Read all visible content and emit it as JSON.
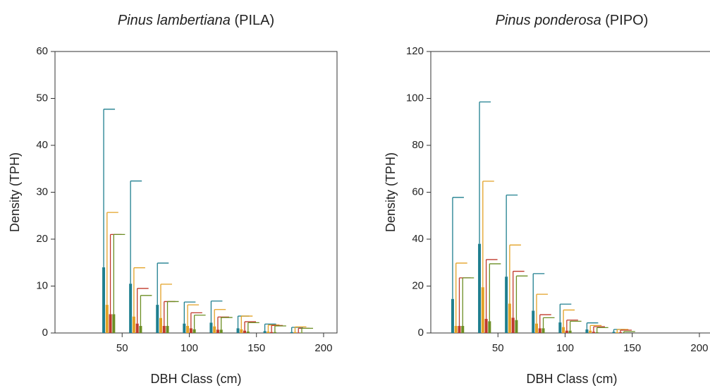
{
  "chart_data": [
    {
      "type": "bar",
      "title": {
        "species": "Pinus lambertiana",
        "code": "(PILA)"
      },
      "x_label": "DBH Class (cm)",
      "y_label": "Density (TPH)",
      "x": [
        40,
        60,
        80,
        100,
        120,
        140,
        160,
        180
      ],
      "xlim": [
        0,
        210
      ],
      "xticks": [
        50,
        100,
        150,
        200
      ],
      "ylim": [
        0,
        60
      ],
      "yticks": [
        0,
        10,
        20,
        30,
        40,
        50,
        60
      ],
      "series": [
        {
          "color": "#1f7f8f",
          "values": [
            14,
            10.5,
            6,
            2,
            2.2,
            1,
            0.4,
            0.2
          ],
          "errors": [
            33.7,
            21.9,
            8.9,
            4.6,
            4.6,
            2.6,
            1.5,
            1.0
          ]
        },
        {
          "color": "#e3a226",
          "values": [
            6,
            3.5,
            3.2,
            1.5,
            1.4,
            0.8,
            0.3,
            0.2
          ],
          "errors": [
            19.7,
            10.4,
            7.2,
            4.5,
            3.6,
            2.8,
            1.4,
            1.1
          ]
        },
        {
          "color": "#c0392b",
          "values": [
            4,
            2,
            1.5,
            1,
            0.7,
            0.5,
            0.2,
            0.1
          ],
          "errors": [
            17,
            7.5,
            5.2,
            3.3,
            2.7,
            1.9,
            1.4,
            0.9
          ]
        },
        {
          "color": "#6b8e23",
          "values": [
            4,
            1.5,
            1.5,
            0.8,
            0.7,
            0.3,
            0.2,
            0.1
          ],
          "errors": [
            17,
            6.5,
            5.2,
            3.0,
            2.6,
            1.9,
            1.3,
            0.9
          ]
        }
      ]
    },
    {
      "type": "bar",
      "title": {
        "species": "Pinus ponderosa",
        "code": "(PIPO)"
      },
      "x_label": "DBH Class (cm)",
      "y_label": "Density (TPH)",
      "x": [
        20,
        40,
        60,
        80,
        100,
        120,
        140
      ],
      "xlim": [
        0,
        210
      ],
      "xticks": [
        50,
        100,
        150,
        200
      ],
      "ylim": [
        0,
        120
      ],
      "yticks": [
        0,
        20,
        40,
        60,
        80,
        100,
        120
      ],
      "series": [
        {
          "color": "#1f7f8f",
          "values": [
            14.5,
            38,
            24,
            9.5,
            4.5,
            1.5,
            0.5
          ],
          "errors": [
            43.3,
            60.5,
            34.8,
            15.8,
            7.8,
            2.8,
            1.0
          ]
        },
        {
          "color": "#e3a226",
          "values": [
            3,
            19.5,
            12.5,
            4,
            2.5,
            1,
            0.3
          ],
          "errors": [
            26.8,
            45.2,
            25,
            12.5,
            7.3,
            2.2,
            1.2
          ]
        },
        {
          "color": "#c0392b",
          "values": [
            3,
            6,
            6.5,
            2,
            1,
            0.5,
            0.3
          ],
          "errors": [
            20.5,
            25.3,
            19.8,
            5.8,
            4.5,
            2.2,
            0.9
          ]
        },
        {
          "color": "#6b8e23",
          "values": [
            3,
            5,
            5.5,
            2,
            1,
            0.3,
            0.1
          ],
          "errors": [
            20.5,
            24.5,
            18.8,
            4.5,
            4.0,
            2.0,
            0.5
          ]
        }
      ]
    }
  ]
}
